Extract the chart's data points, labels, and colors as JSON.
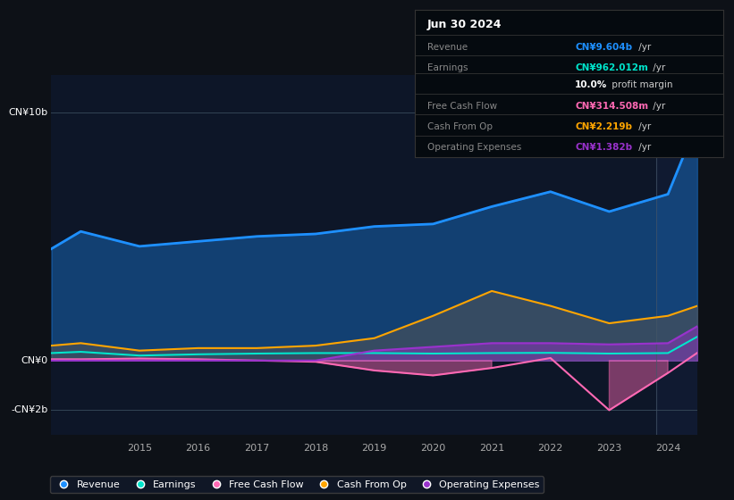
{
  "background_color": "#0d1117",
  "plot_bg_color": "#0d1628",
  "x_years": [
    2013.5,
    2014,
    2015,
    2016,
    2017,
    2018,
    2019,
    2020,
    2021,
    2022,
    2023,
    2024,
    2024.5
  ],
  "revenue": [
    4.5,
    5.2,
    4.6,
    4.8,
    5.0,
    5.1,
    5.4,
    5.5,
    6.2,
    6.8,
    6.0,
    6.7,
    9.6
  ],
  "earnings": [
    0.3,
    0.35,
    0.2,
    0.25,
    0.28,
    0.3,
    0.3,
    0.28,
    0.3,
    0.31,
    0.28,
    0.3,
    0.96
  ],
  "free_cash_flow": [
    0.05,
    0.05,
    0.08,
    0.05,
    0.0,
    -0.05,
    -0.4,
    -0.6,
    -0.3,
    0.1,
    -2.0,
    -0.5,
    0.31
  ],
  "cash_from_op": [
    0.6,
    0.7,
    0.4,
    0.5,
    0.5,
    0.6,
    0.9,
    1.8,
    2.8,
    2.2,
    1.5,
    1.8,
    2.2
  ],
  "operating_exp": [
    0.0,
    0.0,
    0.0,
    0.0,
    0.0,
    0.0,
    0.4,
    0.55,
    0.7,
    0.7,
    0.65,
    0.7,
    1.38
  ],
  "revenue_color": "#1e90ff",
  "earnings_color": "#00e5cc",
  "fcf_color": "#ff69b4",
  "cashop_color": "#ffa500",
  "opex_color": "#9932cc",
  "info_box": {
    "date": "Jun 30 2024",
    "rows": [
      {
        "label": "Revenue",
        "val": "CN¥9.604b",
        "unit": " /yr",
        "color": "#1e90ff",
        "bold": true
      },
      {
        "label": "Earnings",
        "val": "CN¥962.012m",
        "unit": " /yr",
        "color": "#00e5cc",
        "bold": true
      },
      {
        "label": "",
        "val": "10.0%",
        "unit": " profit margin",
        "color": "white",
        "bold": true
      },
      {
        "label": "Free Cash Flow",
        "val": "CN¥314.508m",
        "unit": " /yr",
        "color": "#ff69b4",
        "bold": true
      },
      {
        "label": "Cash From Op",
        "val": "CN¥2.219b",
        "unit": " /yr",
        "color": "#ffa500",
        "bold": true
      },
      {
        "label": "Operating Expenses",
        "val": "CN¥1.382b",
        "unit": " /yr",
        "color": "#9932cc",
        "bold": true
      }
    ]
  },
  "legend": [
    {
      "label": "Revenue",
      "color": "#1e90ff"
    },
    {
      "label": "Earnings",
      "color": "#00e5cc"
    },
    {
      "label": "Free Cash Flow",
      "color": "#ff69b4"
    },
    {
      "label": "Cash From Op",
      "color": "#ffa500"
    },
    {
      "label": "Operating Expenses",
      "color": "#9932cc"
    }
  ],
  "yticks": [
    {
      "val": -2,
      "label": "-CN¥2b"
    },
    {
      "val": 0,
      "label": "CN¥0"
    },
    {
      "val": 10,
      "label": "CN¥10b"
    }
  ],
  "xticks": [
    2015,
    2016,
    2017,
    2018,
    2019,
    2020,
    2021,
    2022,
    2023,
    2024
  ],
  "xlim": [
    2013.5,
    2024.5
  ],
  "ylim": [
    -3.0,
    11.5
  ],
  "vline_x": 2023.8
}
